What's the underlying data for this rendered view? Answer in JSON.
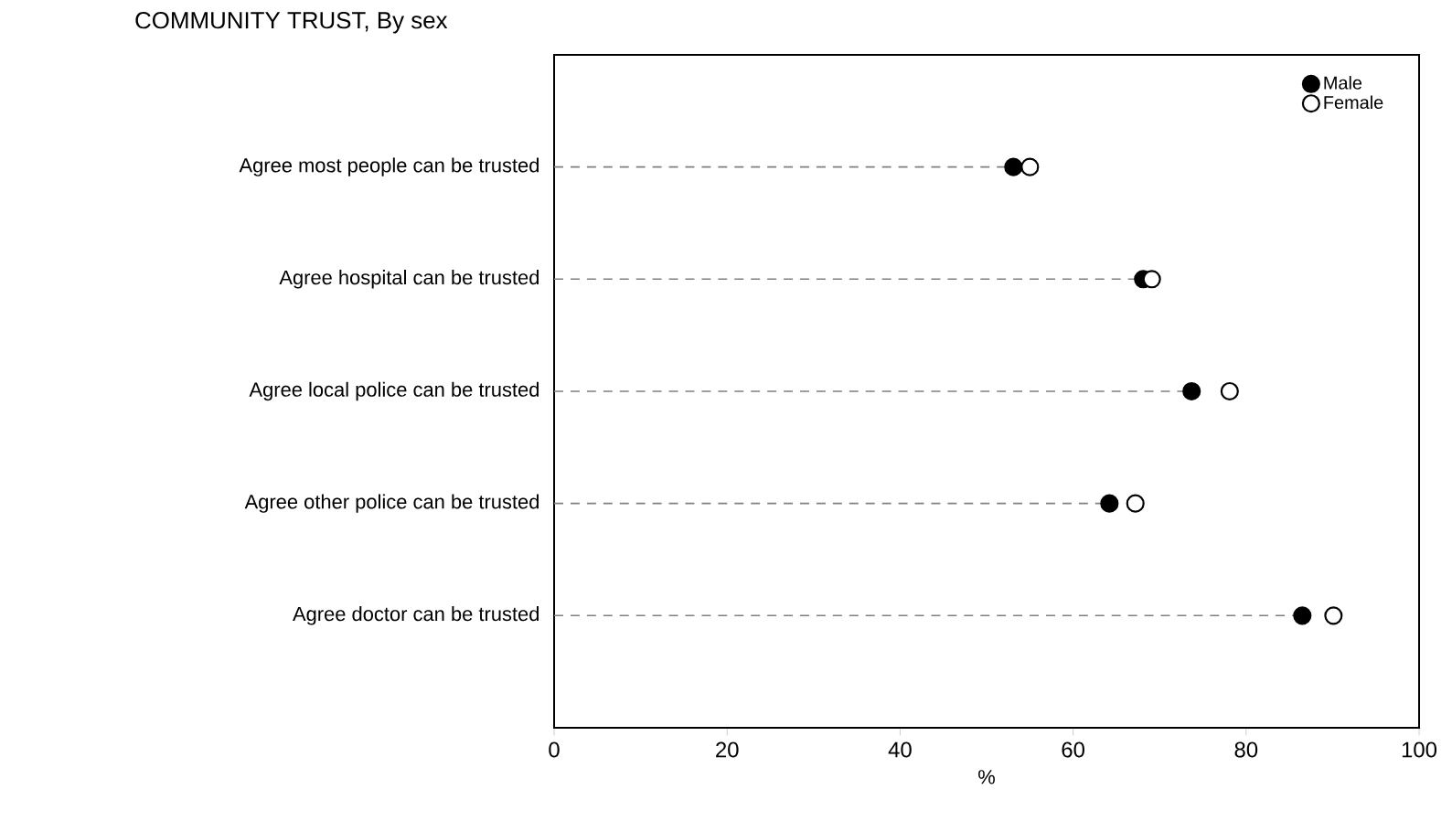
{
  "chart_data": {
    "type": "lollipop",
    "orientation": "horizontal",
    "title": "COMMUNITY TRUST, By sex",
    "xlabel": "%",
    "categories": [
      "Agree most people can be trusted",
      "Agree hospital can be trusted",
      "Agree local police can be trusted",
      "Agree other police can be trusted",
      "Agree doctor can be trusted"
    ],
    "series": [
      {
        "name": "Male",
        "type": "lollipop",
        "color": "#000000",
        "values": [
          53.1,
          68.1,
          73.7,
          64.2,
          86.5
        ],
        "line_style": "dashed"
      },
      {
        "name": "Female",
        "type": "scatter",
        "color": "#ffffff",
        "values": [
          55.0,
          69.1,
          78.1,
          67.2,
          90.1
        ]
      }
    ],
    "xlim": [
      0,
      100
    ],
    "xticks": [
      0,
      20,
      40,
      60,
      80,
      100
    ],
    "marker": "circle",
    "legend": "top right",
    "grid": false
  }
}
